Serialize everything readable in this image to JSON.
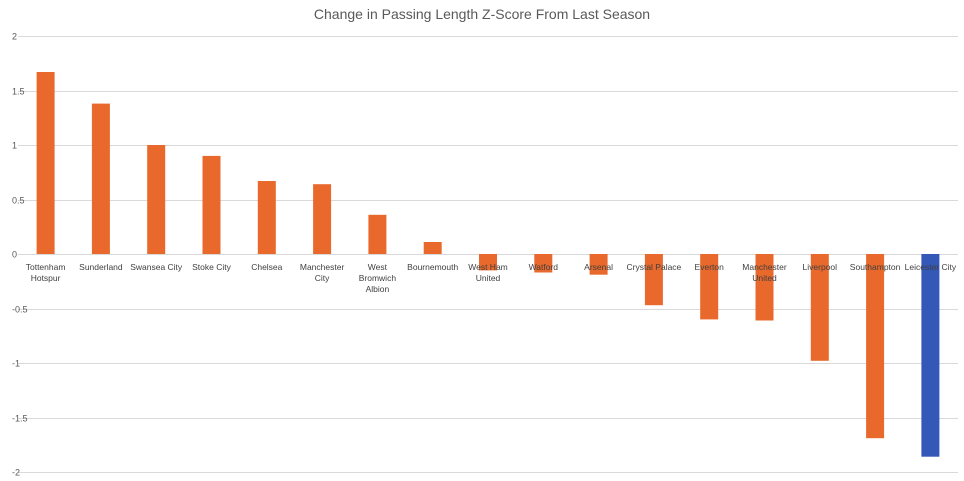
{
  "chart_data": {
    "type": "bar",
    "title": "Change in Passing Length Z-Score From Last Season",
    "xlabel": "",
    "ylabel": "",
    "ylim": [
      -2,
      2
    ],
    "yticks": [
      "2",
      "1.5",
      "1",
      "0.5",
      "0",
      "-0.5",
      "-1",
      "-1.5",
      "-2"
    ],
    "ytick_values": [
      2,
      1.5,
      1,
      0.5,
      0,
      -0.5,
      -1,
      -1.5,
      -2
    ],
    "grid": true,
    "legend": "none",
    "colors": {
      "default": "#e8692b",
      "highlight": "#3358b8",
      "grid": "#d9d9d9",
      "text": "#595959"
    },
    "categories": [
      "Tottenham Hotspur",
      "Sunderland",
      "Swansea City",
      "Stoke City",
      "Chelsea",
      "Manchester City",
      "West Bromwich Albion",
      "Bournemouth",
      "West Ham United",
      "Watford",
      "Arsenal",
      "Crystal Palace",
      "Everton",
      "Manchester United",
      "Liverpool",
      "Southampton",
      "Leicester City"
    ],
    "category_lines": [
      [
        "Tottenham",
        "Hotspur"
      ],
      [
        "Sunderland"
      ],
      [
        "Swansea City"
      ],
      [
        "Stoke City"
      ],
      [
        "Chelsea"
      ],
      [
        "Manchester",
        "City"
      ],
      [
        "West",
        "Bromwich",
        "Albion"
      ],
      [
        "Bournemouth"
      ],
      [
        "West Ham",
        "United"
      ],
      [
        "Watford"
      ],
      [
        "Arsenal"
      ],
      [
        "Crystal Palace"
      ],
      [
        "Everton"
      ],
      [
        "Manchester",
        "United"
      ],
      [
        "Liverpool"
      ],
      [
        "Southampton"
      ],
      [
        "Leicester City"
      ]
    ],
    "values": [
      1.67,
      1.38,
      1.0,
      0.9,
      0.67,
      0.64,
      0.36,
      0.11,
      -0.15,
      -0.17,
      -0.19,
      -0.47,
      -0.6,
      -0.61,
      -0.98,
      -1.69,
      -1.86
    ],
    "highlight_index": 16
  }
}
